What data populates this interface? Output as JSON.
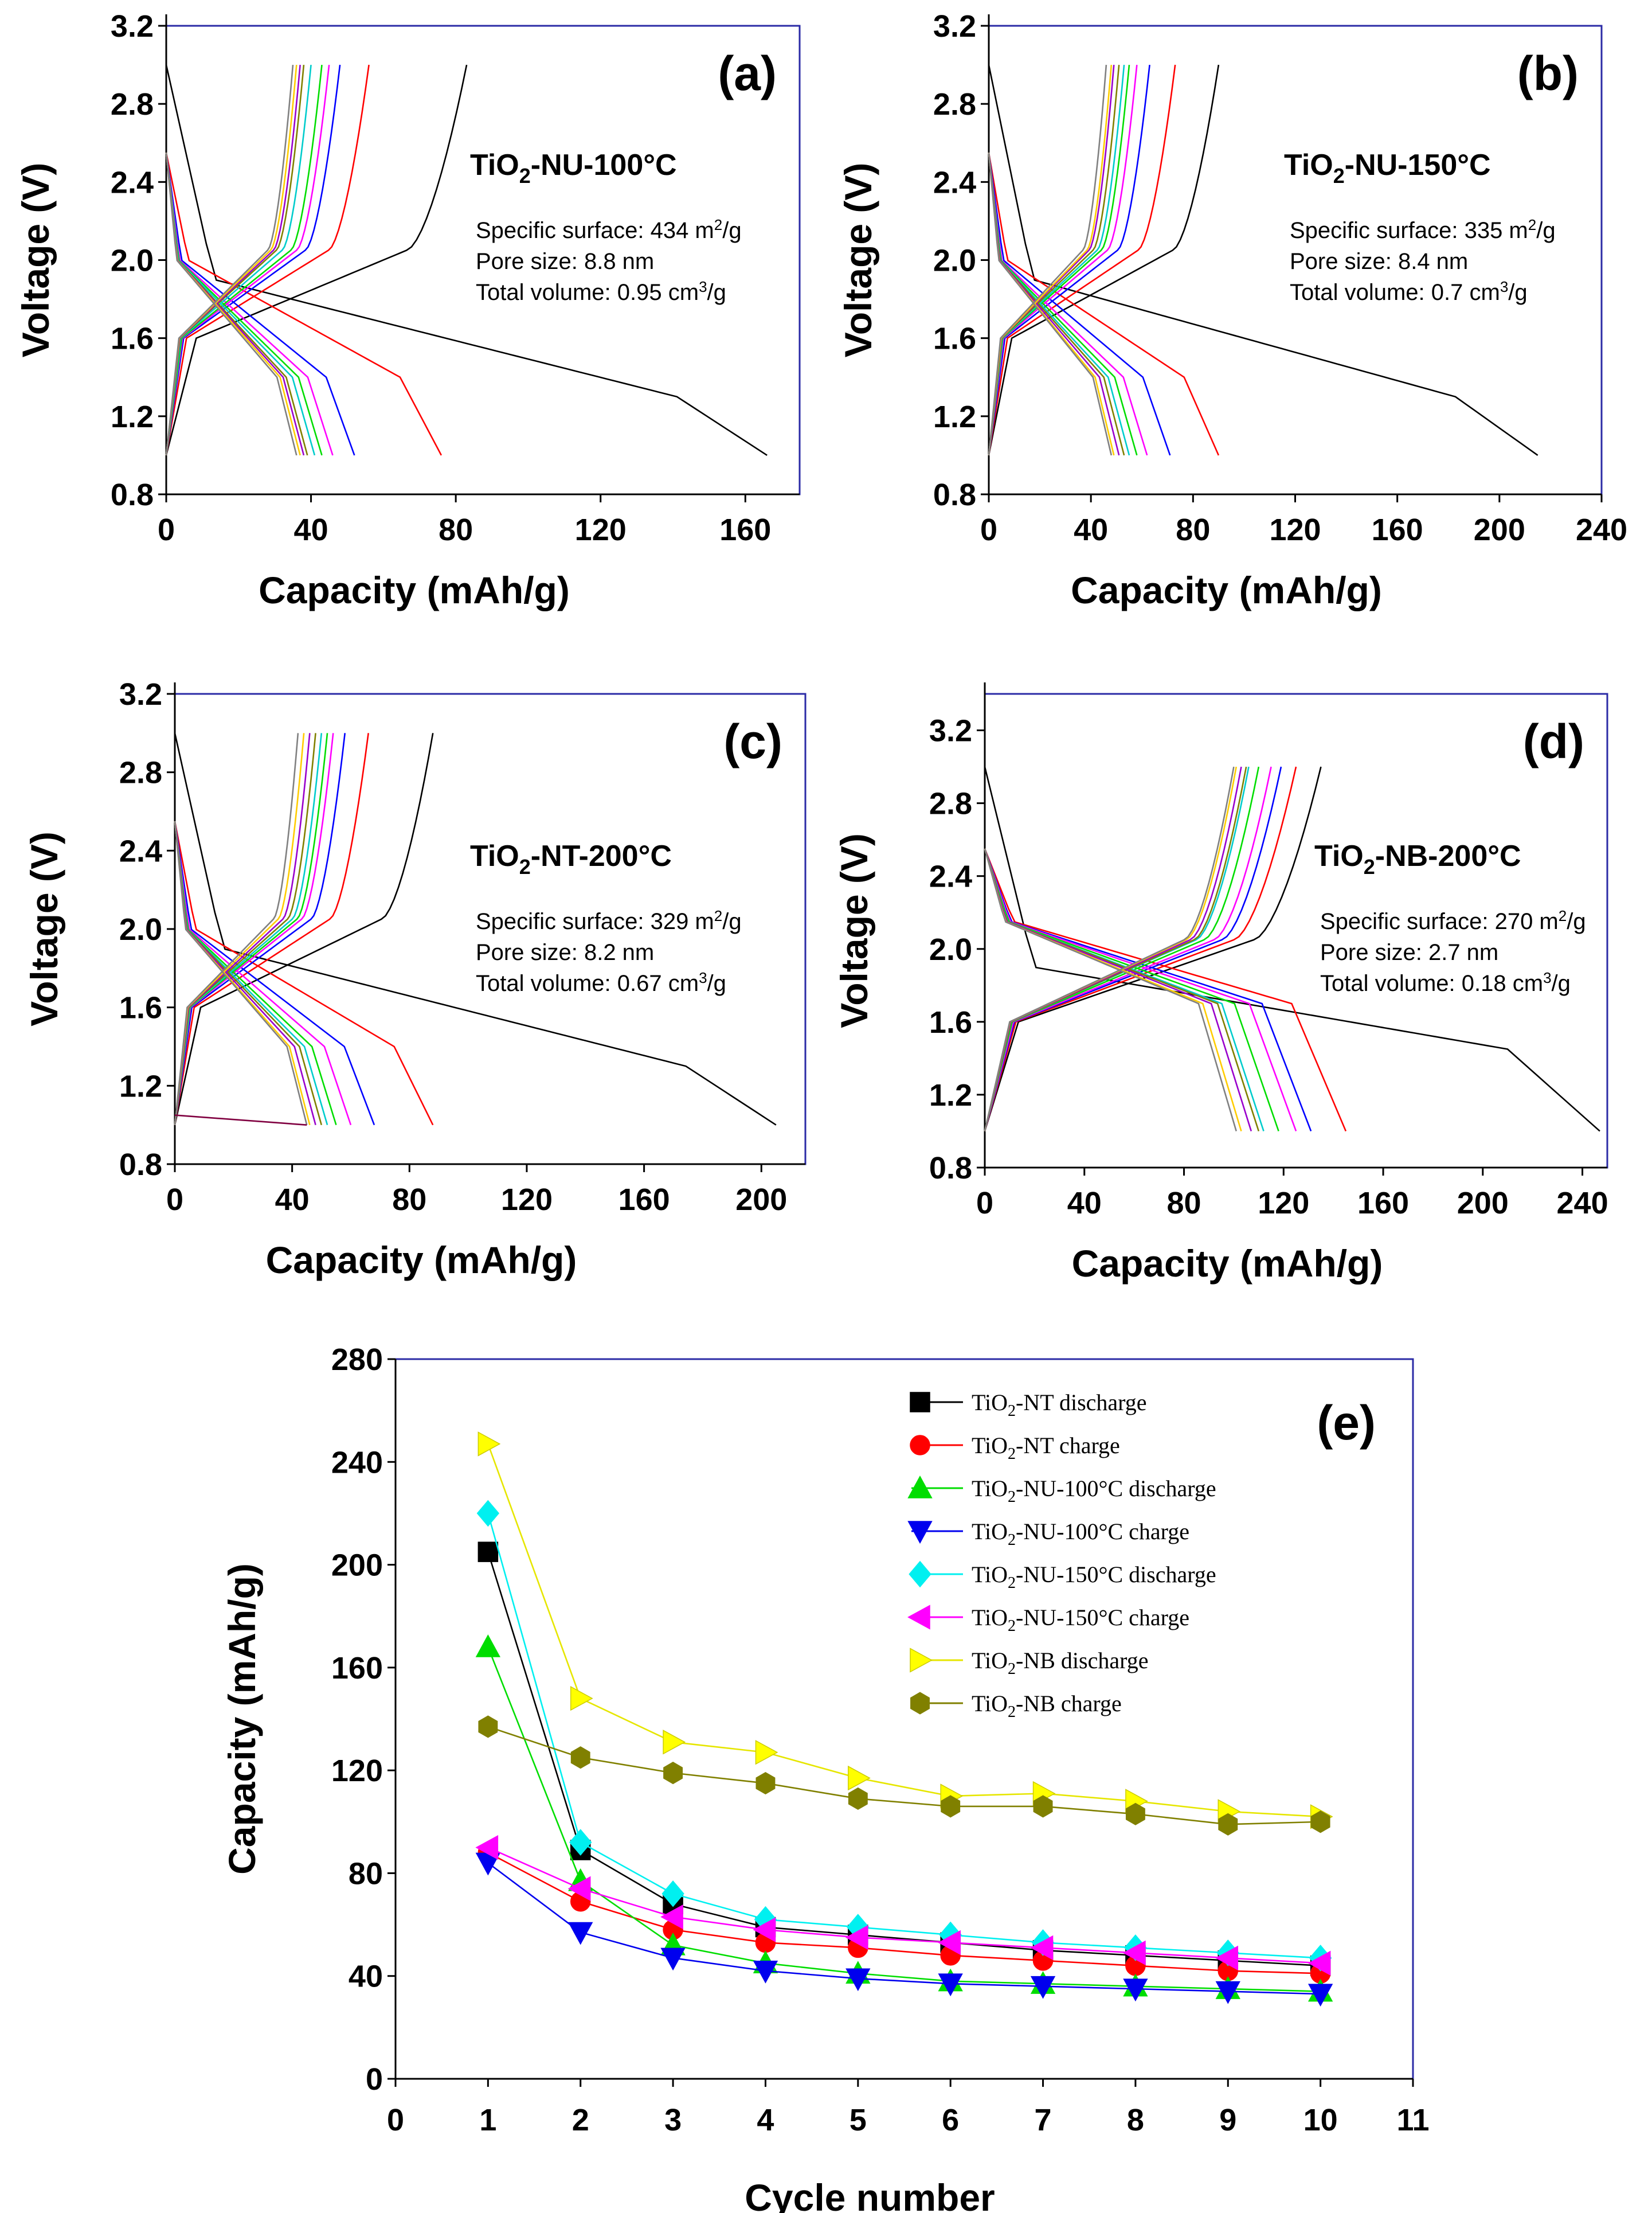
{
  "figure": "Galvanostatic charge/discharge profiles and cycling performance of TiO2 samples",
  "chart_data": [
    {
      "id": "a",
      "type": "line",
      "panel_label": "(a)",
      "title_main": "TiO",
      "title_sub": "2",
      "title_rest": "-NU-100°C",
      "info": [
        {
          "text": "Specific surface: 434 m",
          "sup": "2",
          "tail": "/g"
        },
        {
          "text": "Pore size: 8.8 nm",
          "sup": "",
          "tail": ""
        },
        {
          "text": "Total volume: 0.95 cm",
          "sup": "3",
          "tail": "/g"
        }
      ],
      "xlabel": "Capacity (mAh/g)",
      "ylabel": "Voltage (V)",
      "xlim": [
        0,
        175
      ],
      "ylim": [
        0.8,
        3.2
      ],
      "xticks": [
        "0",
        "40",
        "80",
        "120",
        "160"
      ],
      "yticks": [
        "0.8",
        "1.2",
        "1.6",
        "2.0",
        "2.4",
        "2.8",
        "3.2"
      ],
      "discharge_capacity": [
        166,
        76,
        52,
        46,
        43,
        41,
        39,
        38,
        37,
        36
      ],
      "charge_capacity": [
        83,
        56,
        48,
        45,
        43,
        40,
        38,
        37,
        36,
        35
      ],
      "plateau": 0.55
    },
    {
      "id": "b",
      "type": "line",
      "panel_label": "(b)",
      "title_main": "TiO",
      "title_sub": "2",
      "title_rest": "-NU-150°C",
      "info": [
        {
          "text": "Specific surface: 335 m",
          "sup": "2",
          "tail": "/g"
        },
        {
          "text": "Pore size: 8.4 nm",
          "sup": "",
          "tail": ""
        },
        {
          "text": "Total volume: 0.7 cm",
          "sup": "3",
          "tail": "/g"
        }
      ],
      "xlabel": "Capacity (mAh/g)",
      "ylabel": "Voltage (V)",
      "xlim": [
        0,
        240
      ],
      "ylim": [
        0.8,
        3.2
      ],
      "xticks": [
        "0",
        "40",
        "80",
        "120",
        "160",
        "200",
        "240"
      ],
      "yticks": [
        "0.8",
        "1.2",
        "1.6",
        "2.0",
        "2.4",
        "2.8",
        "3.2"
      ],
      "discharge_capacity": [
        215,
        90,
        71,
        62,
        58,
        55,
        53,
        51,
        49,
        48
      ],
      "charge_capacity": [
        90,
        73,
        63,
        58,
        55,
        53,
        51,
        49,
        48,
        46
      ],
      "plateau": 0.55
    },
    {
      "id": "c",
      "type": "line",
      "panel_label": "(c)",
      "title_main": "TiO",
      "title_sub": "2",
      "title_rest": "-NT-200°C",
      "info": [
        {
          "text": "Specific surface: 329 m",
          "sup": "2",
          "tail": "/g"
        },
        {
          "text": "Pore size: 8.2 nm",
          "sup": "",
          "tail": ""
        },
        {
          "text": "Total volume: 0.67 cm",
          "sup": "3",
          "tail": "/g"
        }
      ],
      "xlabel": "Capacity (mAh/g)",
      "ylabel": "Voltage (V)",
      "xlim": [
        0,
        215
      ],
      "ylim": [
        0.8,
        3.2
      ],
      "xticks": [
        "0",
        "40",
        "80",
        "120",
        "160",
        "200"
      ],
      "yticks": [
        "0.8",
        "1.2",
        "1.6",
        "2.0",
        "2.4",
        "2.8",
        "3.2"
      ],
      "discharge_capacity": [
        205,
        88,
        68,
        60,
        55,
        52,
        50,
        48,
        46,
        45
      ],
      "charge_capacity": [
        88,
        66,
        58,
        54,
        52,
        50,
        48,
        46,
        44,
        42
      ],
      "plateau": 0.55
    },
    {
      "id": "d",
      "type": "line",
      "panel_label": "(d)",
      "title_main": "TiO",
      "title_sub": "2",
      "title_rest": "-NB-200°C",
      "info": [
        {
          "text": "Specific surface: 270 m",
          "sup": "2",
          "tail": "/g"
        },
        {
          "text": "Pore size: 2.7 nm",
          "sup": "",
          "tail": ""
        },
        {
          "text": "Total volume: 0.18 cm",
          "sup": "3",
          "tail": "/g"
        }
      ],
      "xlabel": "Capacity (mAh/g)",
      "ylabel": "Voltage (V)",
      "xlim": [
        0,
        250
      ],
      "ylim": [
        0.8,
        3.4
      ],
      "xticks": [
        "0",
        "40",
        "80",
        "120",
        "160",
        "200",
        "240"
      ],
      "yticks": [
        "0.8",
        "1.2",
        "1.6",
        "2.0",
        "2.4",
        "2.8",
        "3.2"
      ],
      "discharge_capacity": [
        247,
        145,
        131,
        125,
        118,
        112,
        110,
        107,
        103,
        101
      ],
      "charge_capacity": [
        135,
        125,
        119,
        115,
        110,
        106,
        105,
        103,
        101,
        100
      ],
      "plateau": 0.85
    },
    {
      "id": "e",
      "type": "line",
      "panel_label": "(e)",
      "xlabel": "Cycle number",
      "ylabel": "Capacity (mAh/g)",
      "xlim": [
        0,
        11
      ],
      "ylim": [
        0,
        280
      ],
      "xticks": [
        "0",
        "1",
        "2",
        "3",
        "4",
        "5",
        "6",
        "7",
        "8",
        "9",
        "10",
        "11"
      ],
      "yticks": [
        "0",
        "40",
        "80",
        "120",
        "160",
        "200",
        "240",
        "280"
      ],
      "x": [
        1,
        2,
        3,
        4,
        5,
        6,
        7,
        8,
        9,
        10
      ],
      "series": [
        {
          "name_pre": "TiO",
          "name_sub": "2",
          "name_post": "-NT discharge",
          "color": "#000000",
          "marker": "square",
          "values": [
            205,
            89,
            68,
            59,
            56,
            53,
            50,
            48,
            46,
            44
          ]
        },
        {
          "name_pre": "TiO",
          "name_sub": "2",
          "name_post": "-NT charge",
          "color": "#ff0000",
          "marker": "circle",
          "values": [
            88,
            69,
            58,
            53,
            51,
            48,
            46,
            44,
            42,
            41
          ]
        },
        {
          "name_pre": "TiO",
          "name_sub": "2",
          "name_post": "-NU-100°C discharge",
          "color": "#00dd00",
          "marker": "triangle-up",
          "values": [
            168,
            77,
            52,
            45,
            41,
            38,
            37,
            36,
            35,
            34
          ]
        },
        {
          "name_pre": "TiO",
          "name_sub": "2",
          "name_post": "-NU-100°C charge",
          "color": "#0000ee",
          "marker": "triangle-down",
          "values": [
            84,
            57,
            47,
            42,
            39,
            37,
            36,
            35,
            34,
            33
          ]
        },
        {
          "name_pre": "TiO",
          "name_sub": "2",
          "name_post": "-NU-150°C discharge",
          "color": "#00f0f0",
          "marker": "diamond",
          "values": [
            220,
            92,
            72,
            62,
            59,
            56,
            53,
            51,
            49,
            47
          ]
        },
        {
          "name_pre": "TiO",
          "name_sub": "2",
          "name_post": "-NU-150°C charge",
          "color": "#ff00ff",
          "marker": "triangle-left",
          "values": [
            90,
            74,
            63,
            58,
            55,
            53,
            51,
            49,
            47,
            45
          ]
        },
        {
          "name_pre": "TiO",
          "name_sub": "2",
          "name_post": "-NB discharge",
          "color": "#ffff00",
          "marker": "triangle-right",
          "values": [
            247,
            148,
            131,
            127,
            117,
            110,
            111,
            108,
            104,
            102
          ]
        },
        {
          "name_pre": "TiO",
          "name_sub": "2",
          "name_post": "-NB charge",
          "color": "#808000",
          "marker": "hexagon",
          "values": [
            137,
            125,
            119,
            115,
            109,
            106,
            106,
            103,
            99,
            100
          ]
        }
      ]
    }
  ],
  "cycle_colors": [
    "#000000",
    "#ff0000",
    "#0000ff",
    "#ff00ff",
    "#00dd00",
    "#00cccc",
    "#808000",
    "#9900cc",
    "#ffcc00",
    "#808080"
  ]
}
